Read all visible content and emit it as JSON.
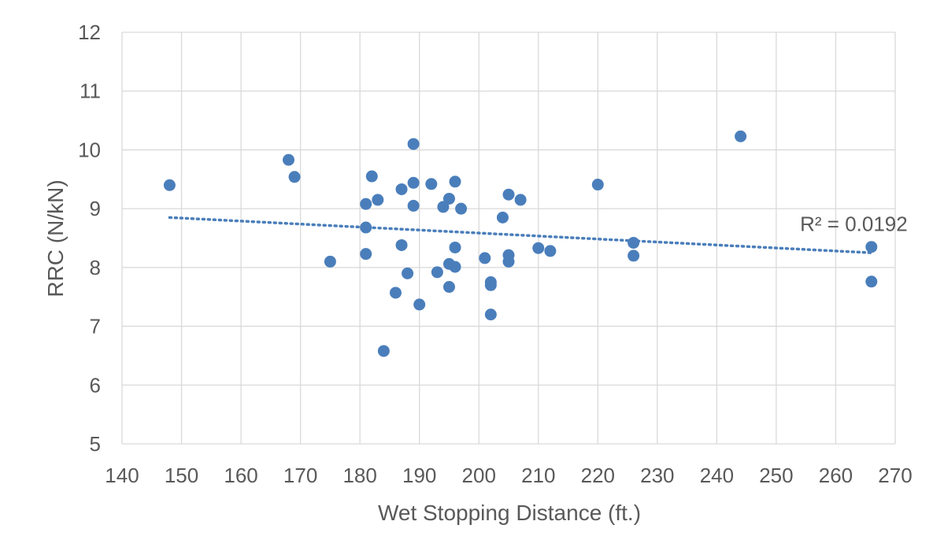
{
  "chart_data": {
    "type": "scatter",
    "title": "",
    "xlabel": "Wet Stopping Distance (ft.)",
    "ylabel": "RRC (N/kN)",
    "xlim": [
      140,
      270
    ],
    "ylim": [
      5,
      12
    ],
    "x_ticks": [
      140,
      150,
      160,
      170,
      180,
      190,
      200,
      210,
      220,
      230,
      240,
      250,
      260,
      270
    ],
    "y_ticks": [
      5,
      6,
      7,
      8,
      9,
      10,
      11,
      12
    ],
    "grid": true,
    "legend": "none",
    "colors": {
      "points": "#4a7ebb",
      "grid": "#d9d9d9",
      "text": "#595959",
      "trend": "#4a7ebb"
    },
    "points": [
      [
        148,
        9.4
      ],
      [
        168,
        9.83
      ],
      [
        169,
        9.54
      ],
      [
        175,
        8.1
      ],
      [
        181,
        9.08
      ],
      [
        181,
        8.68
      ],
      [
        181,
        8.23
      ],
      [
        182,
        9.55
      ],
      [
        183,
        9.15
      ],
      [
        184,
        6.58
      ],
      [
        186,
        7.57
      ],
      [
        187,
        9.33
      ],
      [
        187,
        8.38
      ],
      [
        188,
        7.9
      ],
      [
        189,
        10.1
      ],
      [
        189,
        9.44
      ],
      [
        189,
        9.05
      ],
      [
        190,
        7.37
      ],
      [
        192,
        9.42
      ],
      [
        193,
        7.92
      ],
      [
        194,
        9.03
      ],
      [
        195,
        9.17
      ],
      [
        195,
        8.06
      ],
      [
        195,
        7.67
      ],
      [
        196,
        9.46
      ],
      [
        196,
        8.34
      ],
      [
        196,
        8.01
      ],
      [
        197,
        9.0
      ],
      [
        201,
        8.16
      ],
      [
        202,
        7.75
      ],
      [
        202,
        7.7
      ],
      [
        202,
        7.2
      ],
      [
        204,
        8.85
      ],
      [
        205,
        9.24
      ],
      [
        205,
        8.21
      ],
      [
        205,
        8.1
      ],
      [
        207,
        9.15
      ],
      [
        210,
        8.33
      ],
      [
        212,
        8.28
      ],
      [
        220,
        9.41
      ],
      [
        226,
        8.42
      ],
      [
        226,
        8.2
      ],
      [
        244,
        10.23
      ],
      [
        266,
        8.35
      ],
      [
        266,
        7.76
      ]
    ],
    "trendline": {
      "style": "dotted",
      "x": [
        148,
        266
      ],
      "y": [
        8.85,
        8.25
      ]
    },
    "annotation": {
      "text": "R² = 0.0192",
      "x": 254,
      "y": 8.62
    }
  }
}
